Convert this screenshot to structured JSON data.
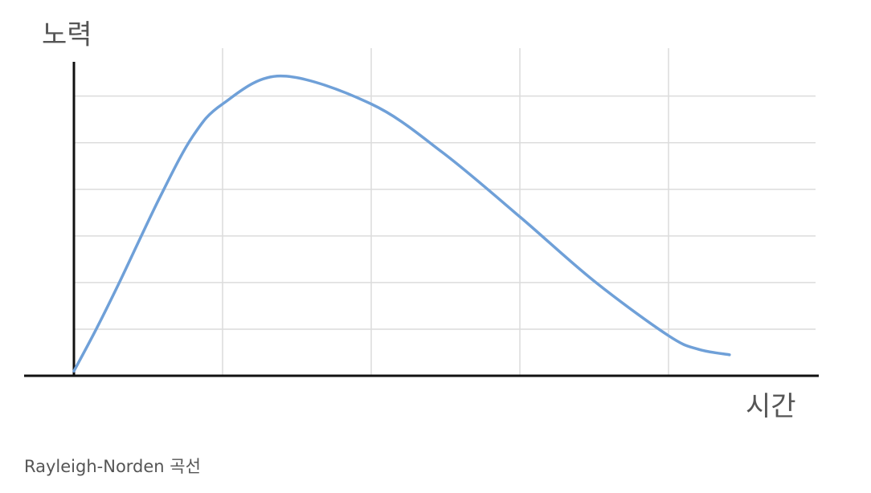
{
  "chart_data": {
    "type": "line",
    "y_label": "노력",
    "x_label": "시간",
    "caption": "Rayleigh-Norden 곡선",
    "x": [
      0,
      0.15,
      0.31,
      0.58,
      0.8,
      1,
      1.39,
      2,
      2.48,
      3,
      3.5,
      4,
      4.2,
      4.41
    ],
    "series": [
      {
        "color": "#6fa0d8",
        "values": [
          0.1,
          1.0,
          2.03,
          3.84,
          5.14,
          5.83,
          6.43,
          5.83,
          4.79,
          3.41,
          2.03,
          0.86,
          0.57,
          0.45
        ]
      }
    ],
    "xlim": [
      0,
      5
    ],
    "ylim": [
      0,
      6.7
    ],
    "xgrid": [
      1,
      2,
      3,
      4
    ],
    "ygrid": [
      1,
      2,
      3,
      4,
      5,
      6
    ],
    "grid": true
  }
}
